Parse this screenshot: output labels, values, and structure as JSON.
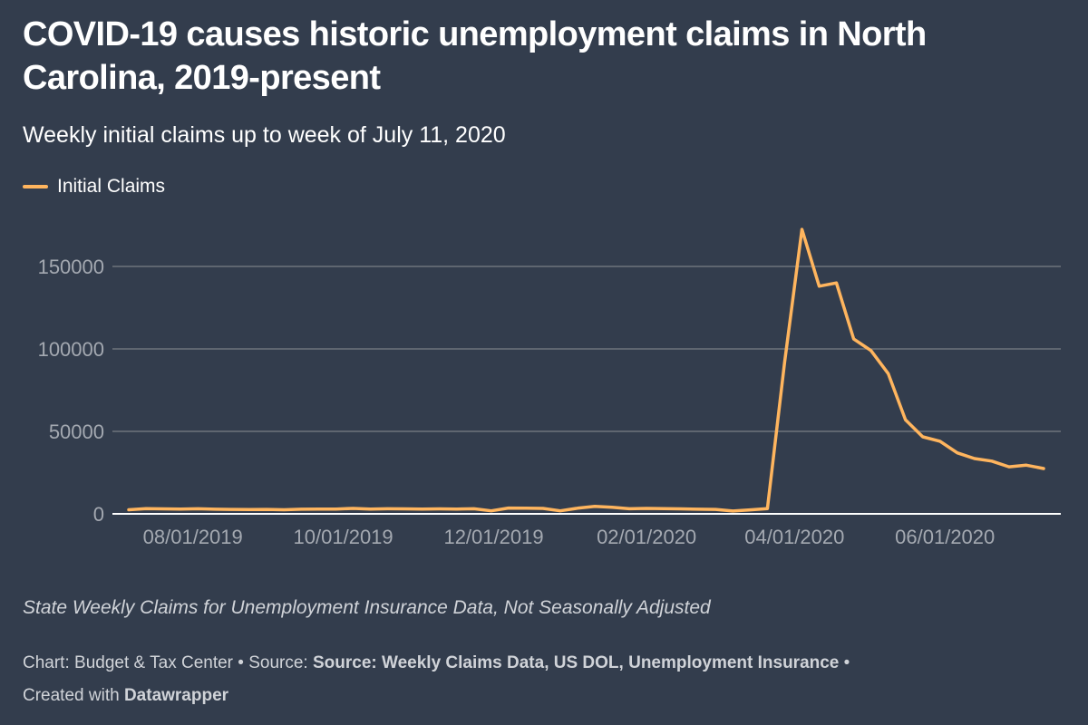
{
  "header": {
    "title": "COVID-19 causes historic unemployment claims in North Carolina, 2019-present",
    "subtitle": "Weekly initial claims up to week of July 11, 2020"
  },
  "legend": {
    "label": "Initial Claims",
    "color": "#ffb55e"
  },
  "footer": {
    "notes": "State Weekly Claims for Unemployment Insurance Data, Not Seasonally Adjusted",
    "chart_prefix": "Chart: ",
    "chart_by": "Budget & Tax Center",
    "separator": " • ",
    "source_prefix": "Source: ",
    "source": "Source: Weekly Claims Data, US DOL, Unemployment Insurance",
    "separator_end": " •",
    "created_prefix": "Created with ",
    "created_with": "Datawrapper"
  },
  "colors": {
    "background": "#333d4d",
    "line": "#ffb55e",
    "grid": "#6e747c",
    "baseline": "#ffffff",
    "tick_text": "#a4a9b1"
  },
  "chart_data": {
    "type": "line",
    "title": "COVID-19 causes historic unemployment claims in North Carolina, 2019-present",
    "subtitle": "Weekly initial claims up to week of July 11, 2020",
    "xlabel": "",
    "ylabel": "",
    "ylim": [
      0,
      170000
    ],
    "grid": true,
    "legend": "top-left",
    "y_ticks": [
      0,
      50000,
      100000,
      150000
    ],
    "y_tick_labels": [
      "0",
      "50000",
      "100000",
      "150000"
    ],
    "x_ticks": [
      "2019-08-01",
      "2019-10-01",
      "2019-12-01",
      "2020-02-01",
      "2020-04-01",
      "2020-06-01"
    ],
    "x_tick_labels": [
      "08/01/2019",
      "10/01/2019",
      "12/01/2019",
      "02/01/2020",
      "04/01/2020",
      "06/01/2020"
    ],
    "x_range": [
      "2019-07-06",
      "2020-07-11"
    ],
    "series": [
      {
        "name": "Initial Claims",
        "color": "#ffb55e",
        "x": [
          "2019-07-06",
          "2019-07-13",
          "2019-07-20",
          "2019-07-27",
          "2019-08-03",
          "2019-08-10",
          "2019-08-17",
          "2019-08-24",
          "2019-08-31",
          "2019-09-07",
          "2019-09-14",
          "2019-09-21",
          "2019-09-28",
          "2019-10-05",
          "2019-10-12",
          "2019-10-19",
          "2019-10-26",
          "2019-11-02",
          "2019-11-09",
          "2019-11-16",
          "2019-11-23",
          "2019-11-30",
          "2019-12-07",
          "2019-12-14",
          "2019-12-21",
          "2019-12-28",
          "2020-01-04",
          "2020-01-11",
          "2020-01-18",
          "2020-01-25",
          "2020-02-01",
          "2020-02-08",
          "2020-02-15",
          "2020-02-22",
          "2020-02-29",
          "2020-03-07",
          "2020-03-14",
          "2020-03-21",
          "2020-03-28",
          "2020-04-04",
          "2020-04-11",
          "2020-04-18",
          "2020-04-25",
          "2020-05-02",
          "2020-05-09",
          "2020-05-16",
          "2020-05-23",
          "2020-05-30",
          "2020-06-06",
          "2020-06-13",
          "2020-06-20",
          "2020-06-27",
          "2020-07-04",
          "2020-07-11"
        ],
        "values": [
          2500,
          3200,
          3000,
          2900,
          3100,
          2800,
          2700,
          2600,
          2700,
          2500,
          2800,
          2900,
          2900,
          3300,
          2900,
          3100,
          3000,
          2900,
          3000,
          2900,
          3100,
          1800,
          3500,
          3400,
          3300,
          1800,
          3400,
          4500,
          4000,
          3100,
          3300,
          3200,
          3000,
          2800,
          2700,
          1700,
          2400,
          3200,
          92000,
          172500,
          138000,
          140000,
          106000,
          99000,
          85000,
          57000,
          46700,
          44000,
          37000,
          33500,
          32000,
          28500,
          29500,
          27500
        ]
      }
    ]
  }
}
